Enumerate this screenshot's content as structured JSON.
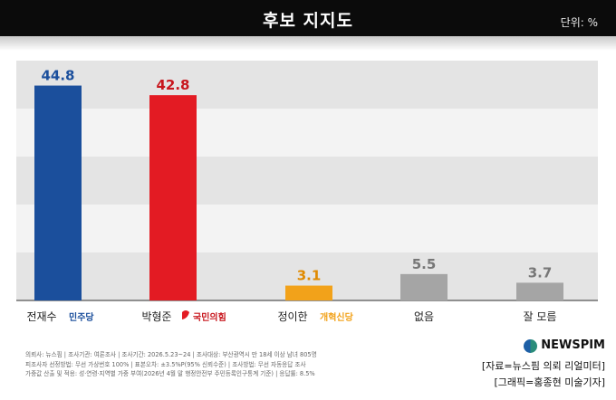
{
  "header": {
    "title": "후보 지지도",
    "unit": "단위: %"
  },
  "chart_data": {
    "type": "bar",
    "title": "후보 지지도",
    "unit": "단위: %",
    "ylim": [
      0,
      50
    ],
    "grid": "horizontal bands",
    "categories": [
      "전재수",
      "박형준",
      "정이한",
      "없음",
      "잘 모름"
    ],
    "values": [
      44.8,
      42.8,
      3.1,
      5.5,
      3.7
    ],
    "value_labels": [
      "44.8",
      "42.8",
      "3.1",
      "5.5",
      "3.7"
    ],
    "parties": [
      "민주당",
      "국민의힘",
      "개혁신당",
      "",
      ""
    ],
    "colors": [
      "#1b4f9c",
      "#e31b23",
      "#f2a21a",
      "#a5a5a5",
      "#a5a5a5"
    ],
    "label_colors": [
      "#1b4f9c",
      "#c8161d",
      "#e08a00",
      "#777777",
      "#777777"
    ],
    "party_colors": [
      "#1b4f9c",
      "#e31b23",
      "#f2a21a",
      "",
      ""
    ]
  },
  "footer": {
    "notes": [
      "의뢰사: 뉴스핌 | 조사기관: 여론조사 | 조사기간: 2026.5.23~24 | 조사대상: 부산광역시 만 18세 이상 남녀 805명",
      "피조사자 선정방법: 무선 가상번호 100% | 표본오차: ±3.5%P(95% 신뢰수준) | 조사방법: 무선 자동응답 조사",
      "가중값 산출 및 적용: 성·연령·지역별 가중 부여(2026년 4월 말 행정안전부 주민등록인구통계 기준) | 응답률: 8.5%"
    ],
    "brand": "NEWSPIM",
    "source": "[자료=뉴스핌 의뢰 리얼미터]",
    "credit": "[그래픽=홍종현 미술기자]",
    "brand_colors": [
      "#2a8c7a",
      "#1d5fa6"
    ]
  }
}
